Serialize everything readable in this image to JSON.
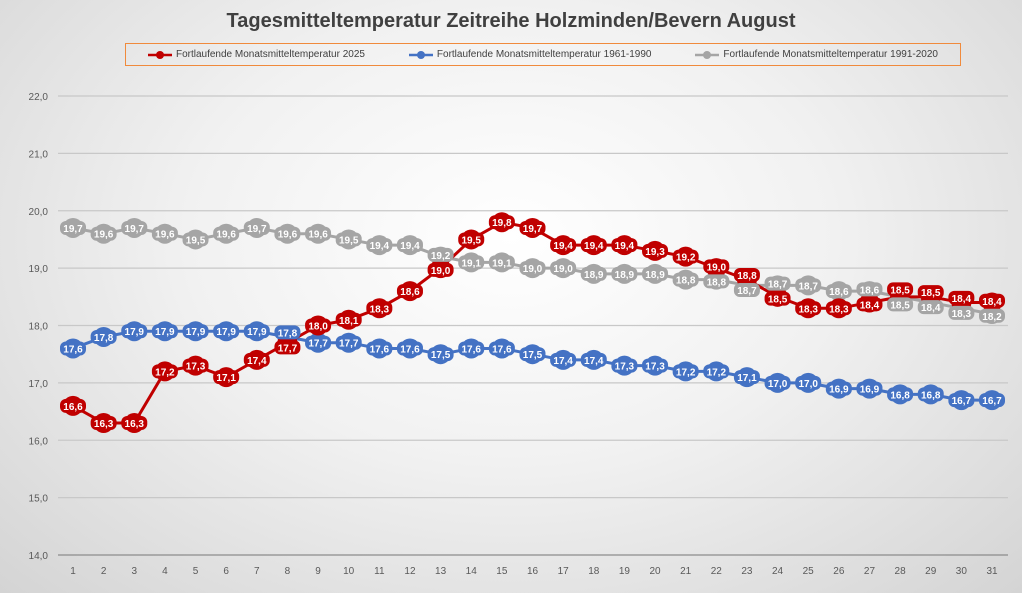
{
  "chart_data": {
    "type": "line",
    "title": "Tagesmitteltemperatur Zeitreihe Holzminden/Bevern August",
    "xlabel": "",
    "ylabel": "",
    "x": [
      1,
      2,
      3,
      4,
      5,
      6,
      7,
      8,
      9,
      10,
      11,
      12,
      13,
      14,
      15,
      16,
      17,
      18,
      19,
      20,
      21,
      22,
      23,
      24,
      25,
      26,
      27,
      28,
      29,
      30,
      31
    ],
    "ylim": [
      14.0,
      22.0
    ],
    "yticks": [
      "14,0",
      "15,0",
      "16,0",
      "17,0",
      "18,0",
      "19,0",
      "20,0",
      "21,0",
      "22,0"
    ],
    "grid": true,
    "legend_position": "top",
    "series": [
      {
        "name": "Fortlaufende Monatsmitteltemperatur 2025",
        "color": "#c00000",
        "values": [
          16.6,
          16.3,
          16.3,
          17.2,
          17.3,
          17.1,
          17.4,
          17.7,
          18.0,
          18.1,
          18.3,
          18.6,
          19.0,
          19.5,
          19.8,
          19.7,
          19.4,
          19.4,
          19.4,
          19.3,
          19.2,
          19.0,
          18.8,
          18.5,
          18.3,
          18.3,
          18.4,
          18.5,
          18.5,
          18.4,
          18.4
        ]
      },
      {
        "name": "Fortlaufende Monatsmitteltemperatur 1961-1990",
        "color": "#4472c4",
        "values": [
          17.6,
          17.8,
          17.9,
          17.9,
          17.9,
          17.9,
          17.9,
          17.8,
          17.7,
          17.7,
          17.6,
          17.6,
          17.5,
          17.6,
          17.6,
          17.5,
          17.4,
          17.4,
          17.3,
          17.3,
          17.2,
          17.2,
          17.1,
          17.0,
          17.0,
          16.9,
          16.9,
          16.8,
          16.8,
          16.7,
          16.7
        ]
      },
      {
        "name": "Fortlaufende Monatsmitteltemperatur 1991-2020",
        "color": "#a5a5a5",
        "values": [
          19.7,
          19.6,
          19.7,
          19.6,
          19.5,
          19.6,
          19.7,
          19.6,
          19.6,
          19.5,
          19.4,
          19.4,
          19.2,
          19.1,
          19.1,
          19.0,
          19.0,
          18.9,
          18.9,
          18.9,
          18.8,
          18.8,
          18.7,
          18.7,
          18.7,
          18.6,
          18.6,
          18.5,
          18.4,
          18.3,
          18.2
        ]
      }
    ]
  }
}
